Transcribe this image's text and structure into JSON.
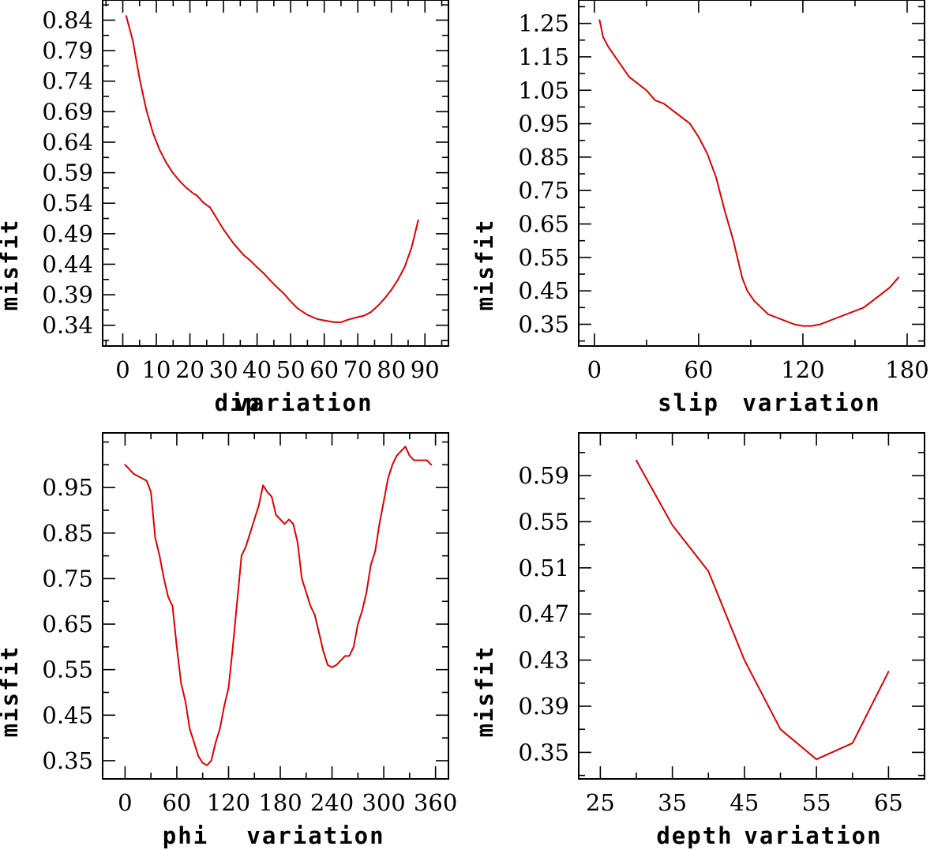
{
  "colors": {
    "line": "#e00000",
    "axes": "#000000",
    "background": "#ffffff"
  },
  "chart_data": [
    {
      "type": "line",
      "xlabel": "dip",
      "xlabel2": "variation",
      "ylabel": "misfit",
      "xlim": [
        -6,
        97
      ],
      "ylim": [
        0.306,
        0.873
      ],
      "xticks": [
        0,
        10,
        20,
        30,
        40,
        50,
        60,
        70,
        80,
        90
      ],
      "xtick_labels": [
        "0",
        "10",
        "20",
        "30",
        "40",
        "50",
        "60",
        "70",
        "80",
        "90"
      ],
      "yticks": [
        0.34,
        0.39,
        0.44,
        0.49,
        0.54,
        0.59,
        0.64,
        0.69,
        0.74,
        0.79,
        0.84
      ],
      "ytick_labels": [
        "0.34",
        "0.39",
        "0.44",
        "0.49",
        "0.54",
        "0.59",
        "0.64",
        "0.69",
        "0.74",
        "0.79",
        "0.84"
      ],
      "series": [
        {
          "name": "misfit",
          "x": [
            1,
            3,
            5,
            7,
            9,
            11,
            13,
            15,
            17,
            19,
            21,
            22,
            24,
            26,
            28,
            30,
            33,
            36,
            38,
            40,
            42,
            44,
            46,
            48,
            50,
            52,
            55,
            58,
            60,
            63,
            65,
            67,
            69,
            72,
            74,
            76,
            78,
            80,
            82,
            84,
            86,
            88
          ],
          "y": [
            0.847,
            0.806,
            0.744,
            0.693,
            0.655,
            0.627,
            0.606,
            0.589,
            0.576,
            0.565,
            0.556,
            0.553,
            0.541,
            0.533,
            0.515,
            0.497,
            0.474,
            0.455,
            0.446,
            0.435,
            0.425,
            0.413,
            0.402,
            0.392,
            0.379,
            0.368,
            0.357,
            0.35,
            0.348,
            0.345,
            0.345,
            0.349,
            0.352,
            0.356,
            0.362,
            0.372,
            0.384,
            0.398,
            0.415,
            0.436,
            0.467,
            0.512
          ]
        }
      ]
    },
    {
      "type": "line",
      "xlabel": "slip",
      "xlabel2": "variation",
      "ylabel": "misfit",
      "xlim": [
        -9,
        190
      ],
      "ylim": [
        0.285,
        1.32
      ],
      "xticks": [
        0,
        60,
        120,
        180
      ],
      "xtick_labels": [
        "0",
        "60",
        "120",
        "180"
      ],
      "yticks": [
        0.35,
        0.45,
        0.55,
        0.65,
        0.75,
        0.85,
        0.95,
        1.05,
        1.15,
        1.25
      ],
      "ytick_labels": [
        "0.35",
        "0.45",
        "0.55",
        "0.65",
        "0.75",
        "0.85",
        "0.95",
        "1.05",
        "1.15",
        "1.25"
      ],
      "series": [
        {
          "name": "misfit",
          "x": [
            3,
            5,
            8,
            12,
            16,
            20,
            25,
            30,
            35,
            40,
            45,
            50,
            55,
            60,
            65,
            70,
            75,
            80,
            85,
            88,
            92,
            96,
            100,
            105,
            110,
            115,
            120,
            125,
            130,
            135,
            140,
            145,
            150,
            155,
            160,
            165,
            170,
            175
          ],
          "y": [
            1.26,
            1.21,
            1.18,
            1.15,
            1.12,
            1.09,
            1.07,
            1.05,
            1.02,
            1.01,
            0.99,
            0.97,
            0.95,
            0.91,
            0.86,
            0.79,
            0.69,
            0.6,
            0.49,
            0.45,
            0.42,
            0.4,
            0.38,
            0.37,
            0.36,
            0.35,
            0.345,
            0.345,
            0.35,
            0.36,
            0.37,
            0.38,
            0.39,
            0.4,
            0.42,
            0.44,
            0.46,
            0.49
          ]
        }
      ]
    },
    {
      "type": "line",
      "xlabel": "phi",
      "xlabel2": "variation",
      "ylabel": "misfit",
      "xlim": [
        -26,
        375
      ],
      "ylim": [
        0.31,
        1.07
      ],
      "xticks": [
        0,
        60,
        120,
        180,
        240,
        300,
        360
      ],
      "xtick_labels": [
        "0",
        "60",
        "120",
        "180",
        "240",
        "300",
        "360"
      ],
      "yticks": [
        0.35,
        0.45,
        0.55,
        0.65,
        0.75,
        0.85,
        0.95
      ],
      "ytick_labels": [
        "0.35",
        "0.45",
        "0.55",
        "0.65",
        "0.75",
        "0.85",
        "0.95"
      ],
      "series": [
        {
          "name": "misfit",
          "x": [
            0,
            5,
            10,
            15,
            20,
            25,
            30,
            35,
            40,
            45,
            50,
            55,
            60,
            65,
            70,
            75,
            80,
            85,
            90,
            95,
            100,
            105,
            110,
            115,
            120,
            125,
            130,
            135,
            140,
            145,
            150,
            155,
            160,
            165,
            170,
            175,
            180,
            185,
            190,
            195,
            200,
            205,
            210,
            215,
            220,
            225,
            230,
            235,
            240,
            245,
            250,
            255,
            260,
            265,
            270,
            275,
            280,
            285,
            290,
            295,
            300,
            305,
            310,
            315,
            320,
            325,
            330,
            335,
            340,
            345,
            350,
            355
          ],
          "y": [
            1.0,
            0.99,
            0.98,
            0.975,
            0.97,
            0.965,
            0.94,
            0.84,
            0.8,
            0.75,
            0.71,
            0.69,
            0.6,
            0.52,
            0.48,
            0.42,
            0.39,
            0.36,
            0.345,
            0.34,
            0.35,
            0.39,
            0.42,
            0.47,
            0.51,
            0.6,
            0.7,
            0.8,
            0.82,
            0.85,
            0.88,
            0.91,
            0.955,
            0.94,
            0.93,
            0.89,
            0.88,
            0.87,
            0.88,
            0.87,
            0.83,
            0.75,
            0.72,
            0.69,
            0.67,
            0.63,
            0.59,
            0.56,
            0.555,
            0.56,
            0.57,
            0.58,
            0.58,
            0.6,
            0.65,
            0.68,
            0.72,
            0.78,
            0.81,
            0.87,
            0.92,
            0.97,
            1.0,
            1.02,
            1.03,
            1.04,
            1.02,
            1.01,
            1.01,
            1.01,
            1.01,
            1.0
          ]
        }
      ]
    },
    {
      "type": "line",
      "xlabel": "depth",
      "xlabel2": "variation",
      "ylabel": "misfit",
      "xlim": [
        22,
        70
      ],
      "ylim": [
        0.327,
        0.627
      ],
      "xticks": [
        25,
        35,
        45,
        55,
        65
      ],
      "xtick_labels": [
        "25",
        "35",
        "45",
        "55",
        "65"
      ],
      "yticks": [
        0.35,
        0.39,
        0.43,
        0.47,
        0.51,
        0.55,
        0.59
      ],
      "ytick_labels": [
        "0.35",
        "0.39",
        "0.43",
        "0.47",
        "0.51",
        "0.55",
        "0.59"
      ],
      "series": [
        {
          "name": "misfit",
          "x": [
            30,
            35,
            40,
            45,
            50,
            55,
            60,
            65
          ],
          "y": [
            0.603,
            0.547,
            0.507,
            0.43,
            0.37,
            0.344,
            0.358,
            0.42
          ]
        }
      ]
    }
  ]
}
